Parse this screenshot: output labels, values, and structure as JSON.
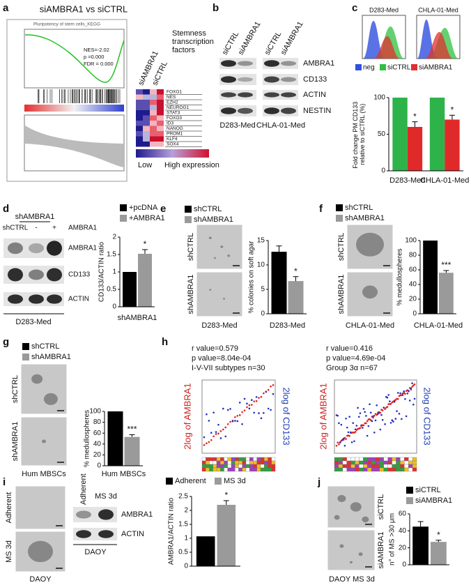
{
  "panels": {
    "a": {
      "label": "a",
      "title": "siAMBRA1 vs siCTRL",
      "gsea_title": "Pluripotency of stem cells_KEGG",
      "nes": "NES=-2.02",
      "p": "p =0.000",
      "fdr": "FDR = 0.000",
      "heatmap_columns": [
        "siAMBRA1",
        "siCTRL"
      ],
      "heatmap_title": "Stemness transcription factors",
      "genes": [
        "FOXO1",
        "NES",
        "EZH2",
        "NEUROG1",
        "STAT3",
        "FOXO3",
        "ID3",
        "NANOG",
        "PROM1",
        "KLF4",
        "SOX4"
      ],
      "scale_low": "Low",
      "scale_high": "High expression"
    },
    "b": {
      "label": "b",
      "lanes": [
        "siCTRL",
        "siAMBRA1",
        "siCTRL",
        "siAMBRA1"
      ],
      "rows": [
        "AMBRA1",
        "CD133",
        "ACTIN",
        "NESTIN"
      ],
      "cell_lines": [
        "D283-Med",
        "CHLA-01-Med"
      ]
    },
    "c": {
      "label": "c",
      "flow_titles": [
        "D283-Med",
        "CHLA-01-Med"
      ],
      "flow_legend": [
        "neg",
        "siCTRL",
        "siAMBRA1"
      ]
    },
    "d": {
      "label": "d",
      "group": "shAMBRA1",
      "lanes": [
        "shCTRL",
        "-",
        "+"
      ],
      "lane_row_label": "AMBRA1",
      "rows": [
        "AMBRA1",
        "CD133",
        "ACTIN"
      ],
      "cell_line": "D283-Med"
    },
    "e": {
      "label": "e",
      "image_labels": [
        "shCTRL",
        "shAMBRA1"
      ],
      "cell_line": "D283-Med"
    },
    "f": {
      "label": "f",
      "image_labels": [
        "shCTRL",
        "shAMBRA1"
      ],
      "cell_line": "CHLA-01-Med"
    },
    "g": {
      "label": "g",
      "image_labels": [
        "shCTRL",
        "shAMBRA1"
      ],
      "cell_line": "Hum MBSCs"
    },
    "h": {
      "label": "h",
      "plots": [
        {
          "r": "r value=0.579",
          "p": "p value=8.04e-04",
          "group": "I-V-VII subtypes n=30"
        },
        {
          "r": "r value=0.416",
          "p": "p value=4.69e-04",
          "group": "Group 3α n=67"
        }
      ],
      "ylabel": "2log of AMBRA1",
      "y2label": "2log of CD133"
    },
    "i": {
      "label": "i",
      "image_labels": [
        "Adherent",
        "MS 3d"
      ],
      "cell_line": "DAOY",
      "lanes": [
        "Adherent",
        "MS 3d"
      ],
      "rows": [
        "AMBRA1",
        "ACTIN"
      ],
      "blot_cell_line": "DAOY"
    },
    "j": {
      "label": "j",
      "image_labels": [
        "siCTRL",
        "siAMBRA1"
      ],
      "cell_line": "DAOY MS 3d"
    }
  },
  "chart_data": [
    {
      "type": "bar",
      "ylabel": "Fold change PM CD133 relative to siCTRL (%)",
      "categories": [
        "D283-Med",
        "CHLA-01-Med"
      ],
      "series": [
        {
          "color": "#2db34a",
          "values": [
            100,
            100
          ],
          "errors": [
            null,
            null
          ]
        },
        {
          "color": "#e02a2a",
          "values": [
            60,
            70
          ],
          "errors": [
            7,
            6
          ]
        }
      ],
      "ylim": [
        0,
        100
      ],
      "yticks": [
        0,
        50,
        100
      ],
      "annotations": [
        "*",
        "*"
      ]
    },
    {
      "type": "bar",
      "ylabel": "CD133/ACTIN ratio",
      "categories": [
        "shAMBRA1"
      ],
      "series": [
        {
          "name": "+pcDNA",
          "color": "#000000",
          "values": [
            1
          ],
          "errors": [
            null
          ]
        },
        {
          "name": "+AMBRA1",
          "color": "#9a9a9a",
          "values": [
            1.52
          ],
          "errors": [
            0.12
          ]
        }
      ],
      "ylim": [
        0,
        2
      ],
      "yticks": [
        0,
        0.5,
        1,
        1.5,
        2
      ],
      "annotations": [
        "*"
      ]
    },
    {
      "type": "bar",
      "ylabel": "% colonies on soft agar",
      "categories": [
        "D283-Med"
      ],
      "series": [
        {
          "name": "shCTRL",
          "color": "#000000",
          "values": [
            12.7
          ],
          "errors": [
            1.2
          ]
        },
        {
          "name": "shAMBRA1",
          "color": "#9a9a9a",
          "values": [
            6.7
          ],
          "errors": [
            0.9
          ]
        }
      ],
      "ylim": [
        0,
        15
      ],
      "yticks": [
        0,
        5,
        10,
        15
      ],
      "annotations": [
        "*"
      ]
    },
    {
      "type": "bar",
      "ylabel": "% medullospheres",
      "categories": [
        "CHLA-01-Med"
      ],
      "series": [
        {
          "name": "shCTRL",
          "color": "#000000",
          "values": [
            100
          ],
          "errors": [
            null
          ]
        },
        {
          "name": "shAMBRA1",
          "color": "#9a9a9a",
          "values": [
            56
          ],
          "errors": [
            3
          ]
        }
      ],
      "ylim": [
        0,
        100
      ],
      "yticks": [
        0,
        20,
        40,
        60,
        80,
        100
      ],
      "annotations": [
        "***"
      ]
    },
    {
      "type": "bar",
      "ylabel": "% medullospheres",
      "categories": [
        "Hum MBSCs"
      ],
      "series": [
        {
          "name": "shCTRL",
          "color": "#000000",
          "values": [
            100
          ],
          "errors": [
            null
          ]
        },
        {
          "name": "shAMBRA1",
          "color": "#9a9a9a",
          "values": [
            53
          ],
          "errors": [
            4
          ]
        }
      ],
      "ylim": [
        0,
        100
      ],
      "yticks": [
        0,
        20,
        40,
        60,
        80,
        100
      ],
      "annotations": [
        "***"
      ]
    },
    {
      "type": "bar",
      "ylabel": "AMBRA1/ACTIN ratio",
      "categories": [
        null
      ],
      "series": [
        {
          "name": "Adherent",
          "color": "#000000",
          "values": [
            1.07
          ],
          "errors": [
            null
          ]
        },
        {
          "name": "MS 3d",
          "color": "#9a9a9a",
          "values": [
            2.2
          ],
          "errors": [
            0.15
          ]
        }
      ],
      "ylim": [
        0,
        2.5
      ],
      "yticks": [
        0,
        0.5,
        1,
        1.5,
        2,
        2.5
      ],
      "annotations": [
        "*"
      ]
    },
    {
      "type": "bar",
      "ylabel": "n° of MS >30 μm",
      "categories": [
        null
      ],
      "series": [
        {
          "name": "siCTRL",
          "color": "#000000",
          "values": [
            45
          ],
          "errors": [
            6
          ]
        },
        {
          "name": "siAMBRA1",
          "color": "#9a9a9a",
          "values": [
            27
          ],
          "errors": [
            2
          ]
        }
      ],
      "ylim": [
        0,
        60
      ],
      "yticks": [
        0,
        20,
        40,
        60
      ],
      "annotations": [
        "*"
      ]
    }
  ]
}
